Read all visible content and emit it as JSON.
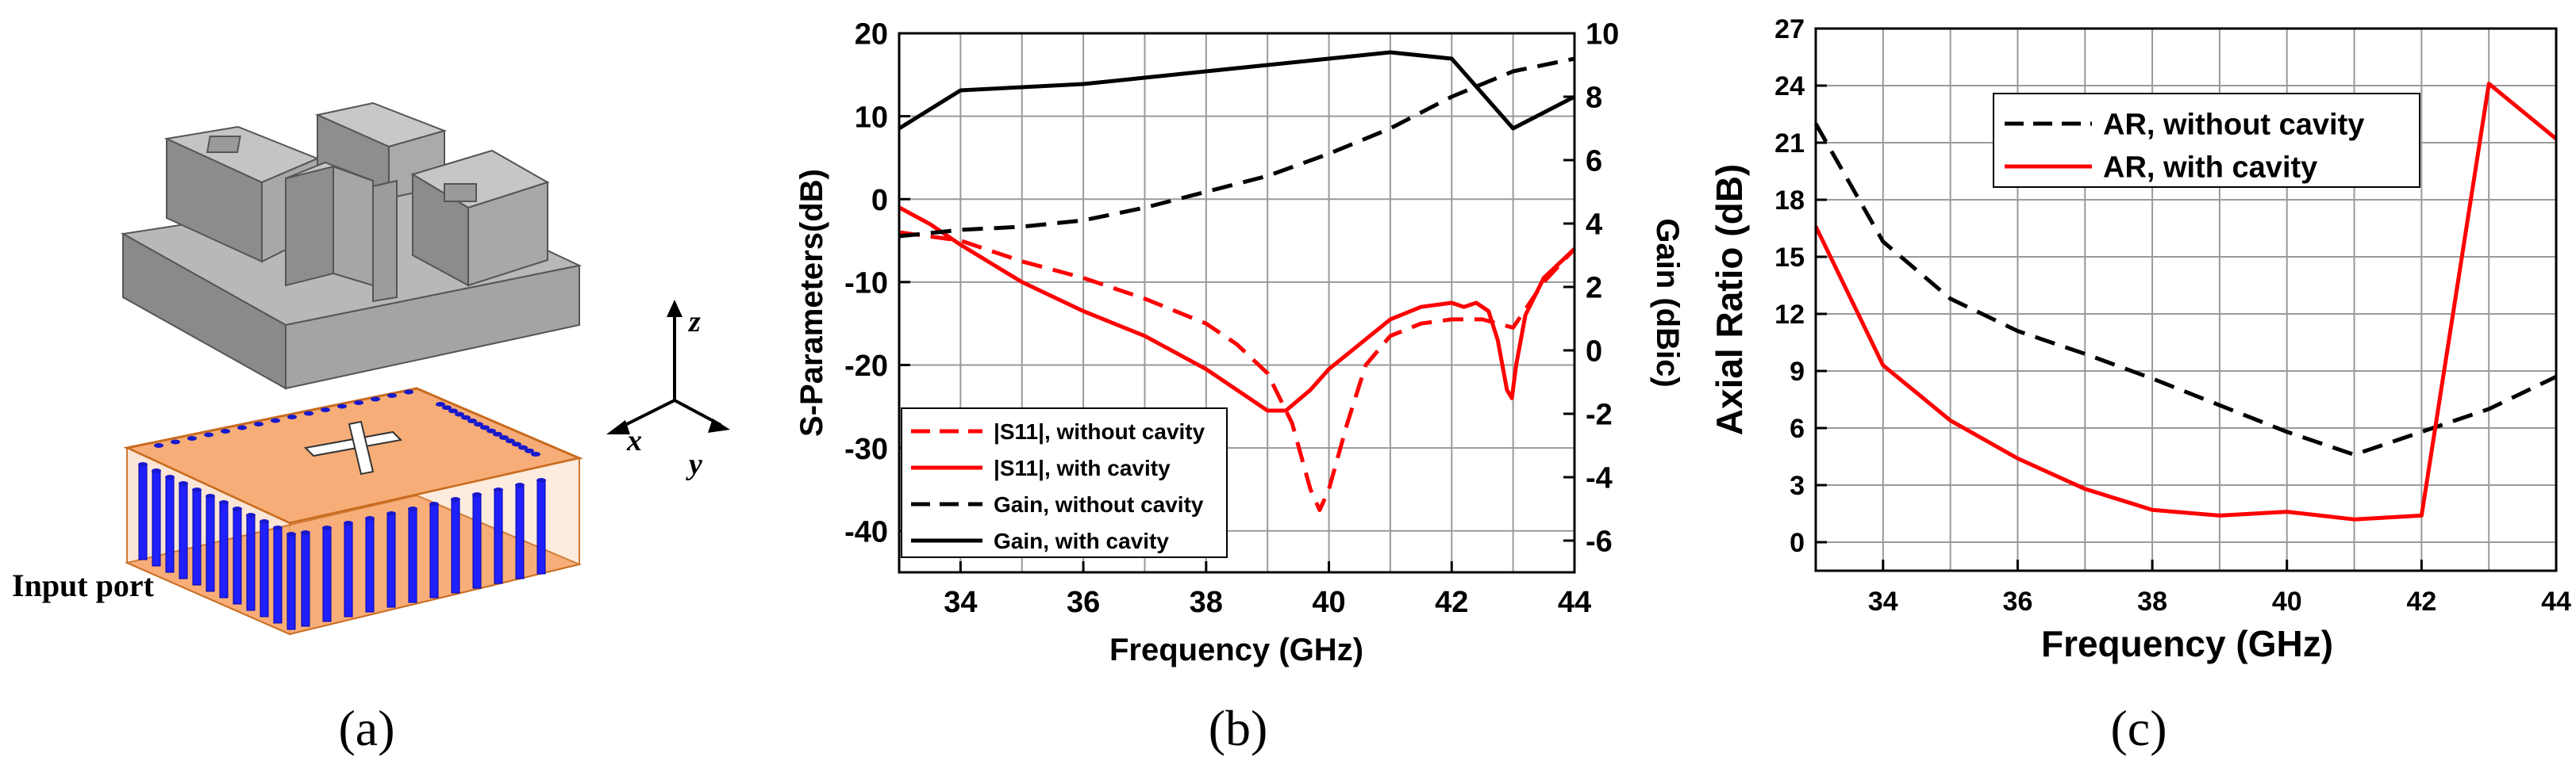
{
  "colors": {
    "red": "#ff0000",
    "black": "#000000",
    "grid": "#9a9a9a",
    "copper": "#f8a468",
    "copper_dark": "#e07a2a",
    "via_blue": "#2020ff",
    "grey_block": "#9c9c9c"
  },
  "panel_labels": {
    "a": "(a)",
    "b": "(b)",
    "c": "(c)"
  },
  "panel_a": {
    "input_port_label": "Input port",
    "axis_labels": {
      "z": "z",
      "x": "x",
      "y": "y"
    },
    "icons": [
      "antenna-cavity-model",
      "substrate-siw-feed-model",
      "coordinate-axes-icon"
    ]
  },
  "chart_data": [
    {
      "type": "line",
      "panel": "b",
      "title": "",
      "xlabel": "Frequency (GHz)",
      "ylabel": "S-Parameters(dB)",
      "y2label": "Gain (dBic)",
      "xlim": [
        33,
        44
      ],
      "ylim": [
        -45,
        20
      ],
      "y2lim": [
        -7,
        10
      ],
      "grid": true,
      "legend_position": "bottom-left",
      "xticks": [
        34,
        36,
        38,
        40,
        42,
        44
      ],
      "yticks": [
        20,
        10,
        0,
        -10,
        -20,
        -30,
        -40
      ],
      "y2ticks": [
        10,
        8,
        6,
        4,
        2,
        0,
        -2,
        -4,
        -6
      ],
      "series": [
        {
          "name": "|S11|, without cavity",
          "axis": "left",
          "color": "#ff0000",
          "dash": "dashed",
          "x": [
            33,
            34,
            35,
            36,
            37,
            38,
            38.5,
            39,
            39.4,
            39.7,
            39.85,
            40,
            40.3,
            40.6,
            41,
            41.5,
            42,
            42.5,
            43,
            43.5,
            44
          ],
          "y": [
            -4,
            -5,
            -7.5,
            -9.5,
            -12,
            -15,
            -17.5,
            -21,
            -27,
            -35,
            -37.5,
            -35,
            -27,
            -20,
            -16.5,
            -15,
            -14.5,
            -14.5,
            -15.5,
            -10,
            -6
          ]
        },
        {
          "name": "|S11|, with cavity",
          "axis": "left",
          "color": "#ff0000",
          "dash": "solid",
          "x": [
            33,
            33.5,
            34,
            35,
            36,
            37,
            38,
            38.5,
            39,
            39.3,
            39.7,
            40,
            40.5,
            41,
            41.5,
            42,
            42.2,
            42.4,
            42.6,
            42.75,
            42.9,
            42.98,
            43.05,
            43.2,
            43.5,
            44
          ],
          "y": [
            -1,
            -3,
            -5.5,
            -10,
            -13.5,
            -16.5,
            -20.5,
            -23,
            -25.5,
            -25.5,
            -23,
            -20.5,
            -17.5,
            -14.5,
            -13,
            -12.5,
            -13,
            -12.5,
            -13.5,
            -17,
            -23,
            -24,
            -20,
            -14,
            -9.5,
            -6
          ]
        },
        {
          "name": "Gain, without cavity",
          "axis": "right",
          "color": "#000000",
          "dash": "dashed",
          "x": [
            33,
            34,
            35,
            36,
            37,
            38,
            39,
            40,
            41,
            42,
            43,
            44
          ],
          "y": [
            3.6,
            3.8,
            3.9,
            4.1,
            4.5,
            5.0,
            5.5,
            6.2,
            7.0,
            8.0,
            8.8,
            9.2
          ]
        },
        {
          "name": "Gain, with cavity",
          "axis": "right",
          "color": "#000000",
          "dash": "solid",
          "x": [
            33,
            34,
            35,
            36,
            37,
            38,
            39,
            40,
            41,
            42,
            43,
            44
          ],
          "y": [
            7.0,
            8.2,
            8.3,
            8.4,
            8.6,
            8.8,
            9.0,
            9.2,
            9.4,
            9.2,
            7.0,
            8.0
          ]
        }
      ]
    },
    {
      "type": "line",
      "panel": "c",
      "title": "",
      "xlabel": "Frequency (GHz)",
      "ylabel": "Axial Ratio (dB)",
      "xlim": [
        33,
        44
      ],
      "ylim": [
        -1.5,
        27
      ],
      "grid": true,
      "legend_position": "top-center",
      "xticks": [
        34,
        36,
        38,
        40,
        42,
        44
      ],
      "yticks": [
        0,
        3,
        6,
        9,
        12,
        15,
        18,
        21,
        24,
        27
      ],
      "series": [
        {
          "name": "AR, without cavity",
          "color": "#000000",
          "dash": "dashed",
          "x": [
            33,
            34,
            35,
            36,
            37,
            38,
            39,
            40,
            41,
            42,
            43,
            44
          ],
          "y": [
            22,
            15.8,
            12.8,
            11.1,
            9.9,
            8.6,
            7.2,
            5.8,
            4.6,
            5.8,
            7.0,
            8.7
          ]
        },
        {
          "name": "AR, with cavity",
          "color": "#ff0000",
          "dash": "solid",
          "x": [
            33,
            34,
            35,
            36,
            37,
            38,
            39,
            40,
            41,
            42,
            43,
            44
          ],
          "y": [
            16.6,
            9.3,
            6.4,
            4.4,
            2.8,
            1.7,
            1.4,
            1.6,
            1.2,
            1.4,
            24.1,
            21.2
          ]
        }
      ]
    }
  ]
}
